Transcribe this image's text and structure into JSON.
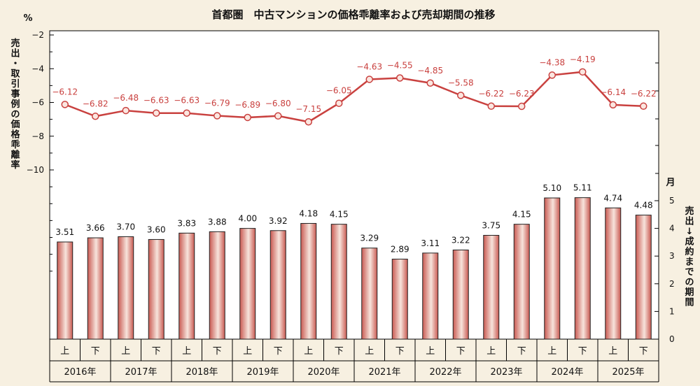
{
  "chart_data": {
    "title": "首都圏　中古マンションの価格乖離率および売却期間の推移",
    "left_axis": {
      "unit": "%",
      "label_chars": [
        "売",
        "出",
        "・",
        "取",
        "引",
        "事",
        "例",
        "の",
        "価",
        "格",
        "乖",
        "離",
        "率"
      ],
      "ticks": [
        -2,
        -4,
        -6,
        -8,
        -10
      ],
      "ylim": [
        -12,
        -2
      ]
    },
    "right_axis": {
      "unit": "月",
      "label_chars": [
        "売",
        "出",
        "↓",
        "成",
        "約",
        "ま",
        "で",
        "の",
        "期",
        "間"
      ],
      "ticks": [
        0,
        1,
        2,
        3,
        4,
        5
      ],
      "ylim": [
        0,
        5
      ]
    },
    "halves": [
      "上",
      "下"
    ],
    "years": [
      "2016年",
      "2017年",
      "2018年",
      "2019年",
      "2020年",
      "2021年",
      "2022年",
      "2023年",
      "2024年",
      "2025年"
    ],
    "series": [
      {
        "type": "line",
        "axis": "left",
        "values": [
          -6.12,
          -6.82,
          -6.48,
          -6.63,
          -6.63,
          -6.79,
          -6.89,
          -6.8,
          -7.15,
          -6.05,
          -4.63,
          -4.55,
          -4.85,
          -5.58,
          -6.22,
          -6.23,
          -4.38,
          -4.19,
          -6.14,
          -6.22
        ],
        "labels": [
          "−6.12",
          "−6.82",
          "−6.48",
          "−6.63",
          "−6.63",
          "−6.79",
          "−6.89",
          "−6.80",
          "−7.15",
          "−6.05",
          "−4.63",
          "−4.55",
          "−4.85",
          "−5.58",
          "−6.22",
          "−6.23",
          "−4.38",
          "−4.19",
          "−6.14",
          "−6.22"
        ],
        "color": "#c9413f"
      },
      {
        "type": "bar",
        "axis": "right",
        "values": [
          3.51,
          3.66,
          3.7,
          3.6,
          3.83,
          3.88,
          4.0,
          3.92,
          4.18,
          4.15,
          3.29,
          2.89,
          3.11,
          3.22,
          3.75,
          4.15,
          5.1,
          5.11,
          4.74,
          4.48
        ],
        "labels": [
          "3.51",
          "3.66",
          "3.70",
          "3.60",
          "3.83",
          "3.88",
          "4.00",
          "3.92",
          "4.18",
          "4.15",
          "3.29",
          "2.89",
          "3.11",
          "3.22",
          "3.75",
          "4.15",
          "5.10",
          "5.11",
          "4.74",
          "4.48"
        ],
        "color": "#c9413f"
      }
    ],
    "grid": false
  }
}
